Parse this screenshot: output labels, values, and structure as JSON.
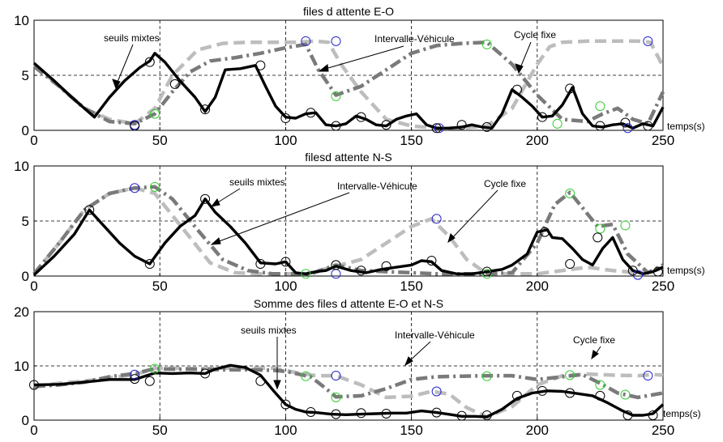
{
  "chart_data": [
    {
      "type": "line",
      "title": "files d attente E-O",
      "xlabel": "temps(s)",
      "xlim": [
        0,
        250
      ],
      "ylim": [
        0,
        10
      ],
      "xticks": [
        0,
        50,
        100,
        150,
        200,
        250
      ],
      "yticks": [
        0,
        5,
        10
      ],
      "grid": true,
      "series": [
        {
          "name": "seuils mixtes",
          "style": "solid-black",
          "color": "#000000",
          "x": [
            0,
            8,
            15,
            20,
            24,
            26,
            30,
            36,
            42,
            46,
            48,
            52,
            58,
            64,
            68,
            72,
            76,
            82,
            88,
            92,
            96,
            100,
            104,
            108,
            112,
            116,
            120,
            124,
            128,
            132,
            136,
            140,
            144,
            148,
            152,
            156,
            160,
            165,
            170,
            174,
            178,
            182,
            186,
            190,
            194,
            198,
            202,
            206,
            210,
            214,
            218,
            222,
            226,
            230,
            234,
            238,
            242,
            246,
            250
          ],
          "y": [
            6.1,
            4.5,
            3,
            2,
            1.2,
            1.8,
            3,
            4.5,
            5.7,
            6.3,
            7,
            6.2,
            4.5,
            3,
            1.7,
            3,
            5.5,
            5.6,
            5.9,
            4,
            2.2,
            1.2,
            1.1,
            1.5,
            1.6,
            0.5,
            0.4,
            0.6,
            1.3,
            1,
            0.5,
            0.4,
            1,
            1.3,
            1.5,
            0.5,
            0.2,
            0.2,
            0.3,
            0.5,
            0.3,
            0.2,
            1.5,
            3.7,
            3,
            2.2,
            1.2,
            1.3,
            2.3,
            3.9,
            1.5,
            0.4,
            0.3,
            0.5,
            0.6,
            0.2,
            0.6,
            0.4,
            2.1
          ],
          "markers_x": [
            40,
            46,
            56,
            68,
            90,
            100,
            110,
            120,
            130,
            140,
            160,
            170,
            180,
            192,
            202,
            213,
            225,
            235,
            244
          ],
          "markers_y": [
            0.4,
            6.2,
            4.2,
            1.9,
            5.9,
            1.1,
            1.6,
            0.4,
            1.2,
            0.5,
            0.2,
            0.5,
            0.3,
            3.7,
            1.2,
            3.8,
            0.4,
            0.7,
            0.4
          ]
        },
        {
          "name": "Intervalle-Véhicule",
          "style": "dashdot-dark-gray",
          "color": "#7a7a7a",
          "x": [
            0,
            10,
            20,
            30,
            40,
            48,
            55,
            62,
            70,
            80,
            90,
            100,
            108,
            113,
            120,
            130,
            140,
            150,
            160,
            170,
            180,
            190,
            200,
            210,
            220,
            226,
            232,
            238,
            244,
            250
          ],
          "y": [
            5.8,
            4,
            2,
            0.8,
            0.6,
            1.5,
            3.5,
            5.3,
            6.3,
            6.6,
            7,
            7.5,
            7.8,
            5.5,
            3.2,
            4,
            5.5,
            7,
            7.7,
            7.9,
            8,
            6,
            3.2,
            1,
            0.8,
            1.5,
            2,
            1,
            0.6,
            3.5
          ],
          "markers_x": [
            48,
            120,
            180,
            208,
            225
          ],
          "markers_y": [
            1.5,
            3.1,
            7.8,
            0.6,
            2.2
          ]
        },
        {
          "name": "Cycle fixe",
          "style": "dashed-light-gray",
          "color": "#bdbdbd",
          "x": [
            0,
            10,
            20,
            30,
            40,
            48,
            55,
            65,
            75,
            85,
            95,
            105,
            112,
            117,
            122,
            130,
            140,
            150,
            160,
            170,
            180,
            190,
            200,
            205,
            210,
            220,
            230,
            240,
            245,
            250
          ],
          "y": [
            6,
            4,
            2,
            1,
            0.6,
            2,
            5,
            7.3,
            7.9,
            8,
            8,
            8,
            8.1,
            8,
            6,
            3.5,
            1,
            0.4,
            0.2,
            0.2,
            0.4,
            2,
            6,
            7.6,
            8,
            8.1,
            8.1,
            8.1,
            8,
            5.8
          ],
          "markers_x": [
            40,
            108,
            120,
            161,
            236,
            244
          ],
          "markers_y": [
            0.5,
            8.1,
            8.1,
            0.2,
            0.2,
            8.1
          ]
        }
      ],
      "annotations": [
        {
          "text": "seuils mixtes"
        },
        {
          "text": "Intervalle-Véhicule"
        },
        {
          "text": "Cycle fixe"
        }
      ]
    },
    {
      "type": "line",
      "title": "filesd attente N-S",
      "xlabel": "temps(s)",
      "xlim": [
        0,
        250
      ],
      "ylim": [
        0,
        10
      ],
      "xticks": [
        0,
        50,
        100,
        150,
        200,
        250
      ],
      "yticks": [
        0,
        5,
        10
      ],
      "grid": true,
      "series": [
        {
          "name": "seuils mixtes",
          "style": "solid-black",
          "color": "#000000",
          "x": [
            0,
            8,
            16,
            22,
            28,
            34,
            40,
            46,
            52,
            58,
            64,
            68,
            72,
            78,
            84,
            90,
            96,
            100,
            104,
            108,
            112,
            116,
            120,
            126,
            132,
            138,
            144,
            150,
            154,
            158,
            162,
            168,
            174,
            180,
            186,
            190,
            196,
            200,
            204,
            206,
            210,
            214,
            218,
            222,
            226,
            230,
            234,
            238,
            242,
            246,
            250
          ],
          "y": [
            0.1,
            1.8,
            3.8,
            6,
            4.5,
            3,
            1.8,
            1.1,
            3,
            4.5,
            5.5,
            7,
            5.8,
            4.5,
            3,
            1.2,
            1.1,
            1.3,
            0.3,
            0.2,
            0.4,
            0.5,
            0.9,
            0.5,
            0.3,
            0.6,
            0.8,
            1,
            1.4,
            1.3,
            0.5,
            0.2,
            0.2,
            0.4,
            0.6,
            1,
            2,
            4,
            4.2,
            3.5,
            3.4,
            2.5,
            1.5,
            1,
            2.5,
            3.5,
            1.5,
            0.5,
            0.2,
            0.4,
            0.8
          ],
          "markers_x": [
            22,
            46,
            68,
            90,
            100,
            120,
            130,
            140,
            158,
            180,
            203,
            213,
            224,
            238,
            248
          ],
          "markers_y": [
            6,
            1.1,
            7,
            1.1,
            1.3,
            1,
            0.5,
            0.9,
            1.4,
            0.4,
            4,
            1.1,
            3.5,
            0.5,
            0.4
          ]
        },
        {
          "name": "Intervalle-Véhicule",
          "style": "dashdot-dark-gray",
          "color": "#7a7a7a",
          "x": [
            0,
            10,
            20,
            30,
            40,
            48,
            55,
            65,
            75,
            85,
            95,
            105,
            110,
            115,
            120,
            130,
            140,
            150,
            160,
            170,
            180,
            190,
            200,
            207,
            213,
            218,
            224,
            230,
            236,
            244,
            250
          ],
          "y": [
            0.2,
            3,
            6,
            7.5,
            8,
            8.1,
            7,
            4.2,
            1.5,
            0.5,
            0.2,
            0.2,
            0.2,
            0.6,
            1,
            0.5,
            0.4,
            0.3,
            0.2,
            0.2,
            0.2,
            0.3,
            3,
            6.5,
            7.6,
            6.2,
            4.5,
            4.7,
            2,
            0.3,
            1
          ],
          "markers_x": [
            48,
            108,
            120,
            180,
            213,
            225,
            235
          ],
          "markers_y": [
            8.1,
            0.2,
            1,
            0.2,
            7.5,
            4.3,
            4.6
          ]
        },
        {
          "name": "Cycle fixe",
          "style": "dashed-light-gray",
          "color": "#bdbdbd",
          "x": [
            0,
            10,
            20,
            30,
            40,
            48,
            55,
            62,
            70,
            80,
            90,
            100,
            108,
            115,
            120,
            130,
            140,
            150,
            158,
            165,
            172,
            180,
            190,
            200,
            210,
            220,
            230,
            240,
            246,
            250
          ],
          "y": [
            0.2,
            3,
            6,
            7.5,
            8,
            7.5,
            5.5,
            3.5,
            1.2,
            0.3,
            0.2,
            0.2,
            0.2,
            0.6,
            0.9,
            1.5,
            3,
            4.5,
            5.2,
            3.6,
            1.5,
            0.2,
            0.2,
            0.2,
            0.5,
            0.8,
            0.5,
            0.3,
            0.4,
            0.8
          ],
          "markers_x": [
            40,
            120,
            160,
            240
          ],
          "markers_y": [
            8,
            0.2,
            5.2,
            0.1
          ]
        }
      ],
      "annotations": [
        {
          "text": "seuils mixtes"
        },
        {
          "text": "Intervalle-Véhicule"
        },
        {
          "text": "Cycle fixe"
        }
      ]
    },
    {
      "type": "line",
      "title": "Somme des files d attente E-O et N-S",
      "xlabel": "temps(s)",
      "xlim": [
        0,
        250
      ],
      "ylim": [
        0,
        20
      ],
      "xticks": [
        0,
        50,
        100,
        150,
        200,
        250
      ],
      "yticks": [
        0,
        10,
        20
      ],
      "grid": true,
      "series": [
        {
          "name": "seuils mixtes",
          "style": "solid-black",
          "color": "#000000",
          "x": [
            0,
            10,
            20,
            30,
            40,
            48,
            55,
            62,
            68,
            72,
            78,
            84,
            90,
            95,
            100,
            104,
            108,
            112,
            118,
            124,
            130,
            136,
            142,
            148,
            154,
            160,
            166,
            170,
            175,
            180,
            186,
            192,
            198,
            204,
            210,
            216,
            222,
            228,
            234,
            238,
            242,
            246,
            250
          ],
          "y": [
            6.5,
            6.6,
            7,
            7.5,
            7.5,
            8.7,
            8.6,
            8.7,
            8.6,
            9.4,
            10.1,
            9.7,
            8.3,
            5.5,
            2.9,
            2,
            1.5,
            1.4,
            1.1,
            1,
            1.1,
            1.2,
            1.3,
            1.3,
            1.7,
            1.4,
            1,
            0.7,
            0.7,
            0.6,
            2,
            4,
            5,
            5.4,
            5.3,
            4.9,
            4.5,
            3.2,
            1.7,
            0.9,
            0.9,
            1.2,
            2.9
          ],
          "markers_x": [
            0,
            40,
            46,
            68,
            90,
            100,
            110,
            120,
            130,
            140,
            160,
            170,
            180,
            192,
            202,
            213,
            225,
            236,
            246
          ],
          "markers_y": [
            6.5,
            7.6,
            7.2,
            8.6,
            7.2,
            2.9,
            1.5,
            1.1,
            1.3,
            1.2,
            1.4,
            0.8,
            0.9,
            4.5,
            5.4,
            5,
            4.5,
            0.9,
            0.9
          ]
        },
        {
          "name": "Intervalle-Véhicule",
          "style": "dashdot-dark-gray",
          "color": "#7a7a7a",
          "x": [
            0,
            10,
            20,
            30,
            40,
            48,
            55,
            65,
            75,
            85,
            95,
            100,
            105,
            110,
            115,
            120,
            130,
            140,
            150,
            160,
            170,
            180,
            190,
            200,
            210,
            218,
            225,
            232,
            240,
            250
          ],
          "y": [
            6.2,
            6.5,
            7,
            8,
            8.6,
            9.5,
            9.4,
            9.4,
            9.3,
            9.3,
            9.2,
            9,
            8.5,
            8,
            6.2,
            4.3,
            4.5,
            5.8,
            7.5,
            8,
            8.1,
            8.2,
            8.2,
            7.5,
            8,
            8.4,
            6.8,
            5,
            4.2,
            5
          ],
          "markers_x": [
            48,
            108,
            120,
            180,
            213,
            225,
            235
          ],
          "markers_y": [
            9.5,
            8.1,
            4.2,
            8.1,
            8.3,
            6.5,
            4.7
          ]
        },
        {
          "name": "Cycle fixe",
          "style": "dashed-light-gray",
          "color": "#bdbdbd",
          "x": [
            0,
            10,
            20,
            30,
            40,
            48,
            55,
            65,
            75,
            85,
            95,
            105,
            112,
            120,
            130,
            140,
            150,
            158,
            165,
            172,
            180,
            190,
            200,
            210,
            220,
            230,
            240,
            246,
            250
          ],
          "y": [
            6.2,
            6.8,
            7.2,
            7.8,
            8.4,
            9.5,
            9.6,
            9.5,
            9.6,
            9.6,
            9.6,
            8.7,
            8.2,
            8.2,
            6.5,
            4.2,
            4.4,
            5.3,
            4.8,
            2.3,
            0.6,
            2.5,
            6.5,
            8.2,
            8.5,
            8.3,
            8.2,
            8.4,
            8.3
          ],
          "markers_x": [
            40,
            120,
            160,
            244
          ],
          "markers_y": [
            8.4,
            8.2,
            5.3,
            8.2
          ]
        }
      ],
      "annotations": [
        {
          "text": "seuils mixtes"
        },
        {
          "text": "Intervalle-Véhicule"
        },
        {
          "text": "Cycle fixe"
        }
      ]
    }
  ]
}
